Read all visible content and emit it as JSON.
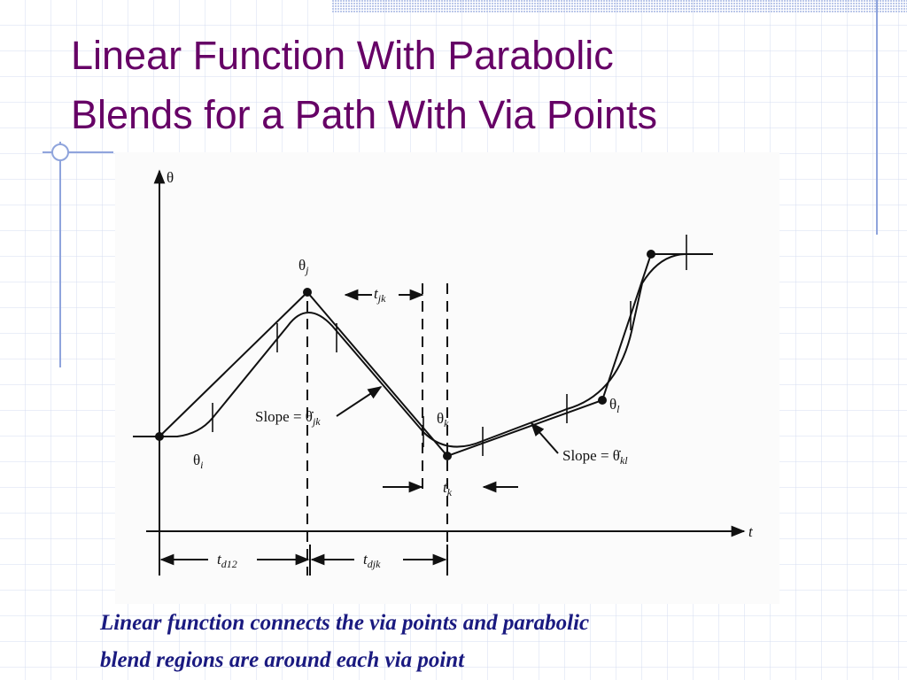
{
  "title": {
    "line1": "Linear Function With Parabolic",
    "line2": "Blends for a Path With Via Points"
  },
  "figure": {
    "theta_axis": "θ",
    "t_axis": "t",
    "theta_j": {
      "base": "θ",
      "sub": "j"
    },
    "theta_i": {
      "base": "θ",
      "sub": "i"
    },
    "theta_k": {
      "base": "θ",
      "sub": "k"
    },
    "theta_l": {
      "base": "θ",
      "sub": "l"
    },
    "t_jk": {
      "base": "t",
      "sub": "jk"
    },
    "t_k": {
      "base": "t",
      "sub": "k"
    },
    "slope_jk": {
      "base": "Slope = θ̇",
      "sub": "jk"
    },
    "slope_kl": {
      "base": "Slope = θ̇",
      "sub": "kl"
    },
    "t_d12": {
      "base": "t",
      "sub": "d12"
    },
    "t_djk": {
      "base": "t",
      "sub": "djk"
    }
  },
  "caption": {
    "line1": "Linear function connects the via points and parabolic",
    "line2": "blend regions are around each via point"
  }
}
